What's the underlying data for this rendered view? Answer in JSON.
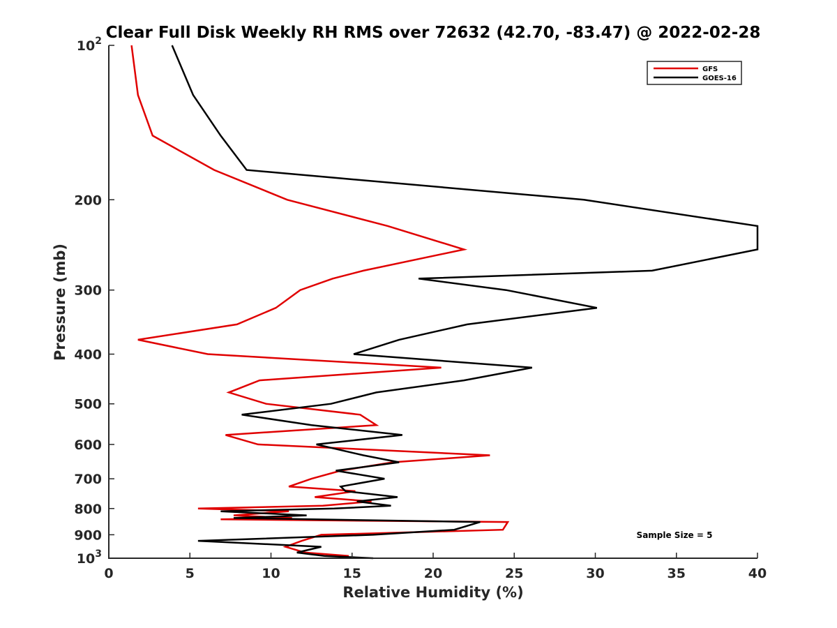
{
  "chart_data": {
    "type": "line",
    "title": "Clear Full Disk Weekly RH RMS over 72632 (42.70, -83.47) @ 2022-02-28",
    "xlabel": "Relative Humidity (%)",
    "ylabel": "Pressure (mb)",
    "xlim": [
      0,
      40
    ],
    "ylim": [
      100,
      1000
    ],
    "yscale": "log",
    "y_reversed": true,
    "xticks": [
      0,
      5,
      10,
      15,
      20,
      25,
      30,
      35,
      40
    ],
    "xtick_labels": [
      "0",
      "5",
      "10",
      "15",
      "20",
      "25",
      "30",
      "35",
      "40"
    ],
    "yticks": [
      {
        "value": 100,
        "base": "10",
        "exp": "2"
      },
      {
        "value": 200,
        "label": "200"
      },
      {
        "value": 300,
        "label": "300"
      },
      {
        "value": 400,
        "label": "400"
      },
      {
        "value": 500,
        "label": "500"
      },
      {
        "value": 600,
        "label": "600"
      },
      {
        "value": 700,
        "label": "700"
      },
      {
        "value": 800,
        "label": "800"
      },
      {
        "value": 900,
        "label": "900"
      },
      {
        "value": 1000,
        "base": "10",
        "exp": "3"
      }
    ],
    "legend_position": "top-right",
    "annotation": "Sample Size = 5",
    "series": [
      {
        "name": "GFS",
        "color": "#e00000",
        "points": [
          [
            1.4,
            100
          ],
          [
            1.8,
            125
          ],
          [
            2.7,
            150
          ],
          [
            6.5,
            175
          ],
          [
            11.0,
            200
          ],
          [
            17.2,
            225
          ],
          [
            21.9,
            250
          ],
          [
            15.7,
            275
          ],
          [
            13.8,
            285
          ],
          [
            11.8,
            300
          ],
          [
            10.3,
            325
          ],
          [
            7.9,
            350
          ],
          [
            1.8,
            375
          ],
          [
            6.1,
            400
          ],
          [
            20.5,
            425
          ],
          [
            9.3,
            450
          ],
          [
            7.4,
            475
          ],
          [
            9.7,
            500
          ],
          [
            15.5,
            525
          ],
          [
            16.5,
            550
          ],
          [
            7.2,
            575
          ],
          [
            9.2,
            600
          ],
          [
            23.5,
            630
          ],
          [
            17.5,
            650
          ],
          [
            14.3,
            675
          ],
          [
            12.5,
            700
          ],
          [
            11.1,
            725
          ],
          [
            15.2,
            740
          ],
          [
            12.7,
            760
          ],
          [
            16.2,
            775
          ],
          [
            13.2,
            790
          ],
          [
            5.5,
            800
          ],
          [
            11.1,
            810
          ],
          [
            7.7,
            825
          ],
          [
            11.3,
            835
          ],
          [
            6.9,
            840
          ],
          [
            24.6,
            850
          ],
          [
            24.3,
            880
          ],
          [
            13.1,
            900
          ],
          [
            11.9,
            925
          ],
          [
            10.9,
            950
          ],
          [
            12.1,
            975
          ],
          [
            14.8,
            990
          ]
        ]
      },
      {
        "name": "GOES-16",
        "color": "#000000",
        "points": [
          [
            3.9,
            100
          ],
          [
            5.2,
            125
          ],
          [
            6.9,
            150
          ],
          [
            8.5,
            175
          ],
          [
            29.3,
            200
          ],
          [
            40.0,
            225
          ],
          [
            40.0,
            250
          ],
          [
            33.5,
            275
          ],
          [
            19.1,
            285
          ],
          [
            24.5,
            300
          ],
          [
            30.1,
            325
          ],
          [
            22.1,
            350
          ],
          [
            17.9,
            375
          ],
          [
            15.1,
            400
          ],
          [
            26.1,
            425
          ],
          [
            21.9,
            450
          ],
          [
            16.5,
            475
          ],
          [
            13.7,
            500
          ],
          [
            8.2,
            525
          ],
          [
            12.5,
            550
          ],
          [
            18.1,
            575
          ],
          [
            12.8,
            600
          ],
          [
            15.7,
            630
          ],
          [
            17.9,
            650
          ],
          [
            14.0,
            675
          ],
          [
            17.0,
            700
          ],
          [
            14.3,
            725
          ],
          [
            14.6,
            740
          ],
          [
            17.8,
            760
          ],
          [
            15.3,
            775
          ],
          [
            17.4,
            790
          ],
          [
            13.9,
            800
          ],
          [
            6.9,
            810
          ],
          [
            12.2,
            825
          ],
          [
            7.7,
            835
          ],
          [
            22.9,
            850
          ],
          [
            21.3,
            880
          ],
          [
            16.3,
            900
          ],
          [
            5.5,
            925
          ],
          [
            13.1,
            950
          ],
          [
            11.6,
            975
          ],
          [
            13.3,
            990
          ],
          [
            16.3,
            1000
          ]
        ]
      }
    ]
  }
}
